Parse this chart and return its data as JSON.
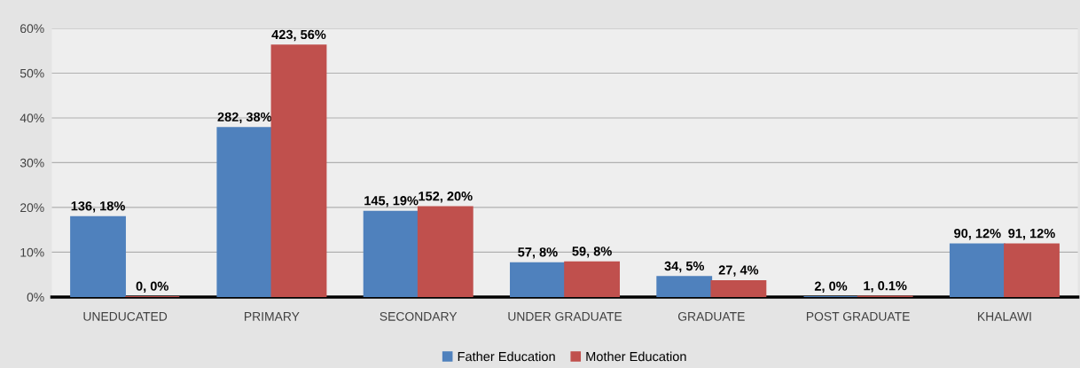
{
  "chart_data": {
    "type": "bar",
    "categories": [
      "UNEDUCATED",
      "PRIMARY",
      "SECONDARY",
      "UNDER GRADUATE",
      "GRADUATE",
      "POST GRADUATE",
      "KHALAWI"
    ],
    "series": [
      {
        "name": "Father Education",
        "color": "#4f81bd",
        "values": [
          17.9,
          37.8,
          19.1,
          7.6,
          4.5,
          0,
          11.8
        ],
        "value_labels": [
          "136, 18%",
          "282, 38%",
          "145, 19%",
          "57, 8%",
          "34, 5%",
          "2, 0%",
          "90, 12%"
        ]
      },
      {
        "name": "Mother Education",
        "color": "#c0504d",
        "values": [
          0,
          56.2,
          20.1,
          7.8,
          3.6,
          0.1,
          11.8
        ],
        "value_labels": [
          "0, 0%",
          "423, 56%",
          "152, 20%",
          "59, 8%",
          "27, 4%",
          "1, 0.1%",
          "91, 12%"
        ]
      }
    ],
    "ylim": [
      0,
      60
    ],
    "yticks": [
      {
        "value": 0,
        "label": "0%"
      },
      {
        "value": 10,
        "label": "10%"
      },
      {
        "value": 20,
        "label": "20%"
      },
      {
        "value": 30,
        "label": "30%"
      },
      {
        "value": 40,
        "label": "40%"
      },
      {
        "value": 50,
        "label": "50%"
      },
      {
        "value": 60,
        "label": "60%"
      }
    ],
    "grid": "y",
    "legend": "bottom"
  }
}
